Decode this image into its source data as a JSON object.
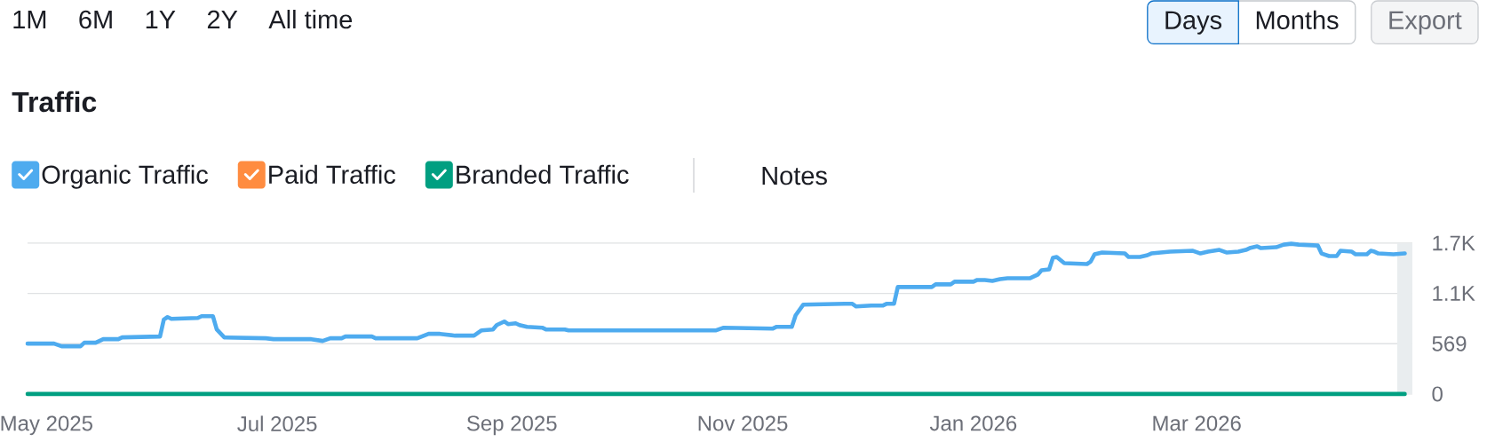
{
  "chart_data": {
    "type": "line",
    "title": "Traffic",
    "annotations": [
      "1M",
      "6M",
      "1Y",
      "2Y",
      "All time",
      "Days",
      "Months",
      "Export",
      "Notes"
    ],
    "x": [
      "2025-04-26",
      "2025-05-03",
      "2025-05-05",
      "2025-05-10",
      "2025-05-11",
      "2025-05-14",
      "2025-05-16",
      "2025-05-20",
      "2025-05-21",
      "2025-05-31",
      "2025-06-01",
      "2025-06-02",
      "2025-06-03",
      "2025-06-10",
      "2025-06-11",
      "2025-06-14",
      "2025-06-15",
      "2025-06-17",
      "2025-06-28",
      "2025-06-30",
      "2025-07-10",
      "2025-07-13",
      "2025-07-15",
      "2025-07-18",
      "2025-07-19",
      "2025-07-26",
      "2025-07-27",
      "2025-08-07",
      "2025-08-10",
      "2025-08-13",
      "2025-08-17",
      "2025-08-22",
      "2025-08-24",
      "2025-08-27",
      "2025-08-28",
      "2025-08-30",
      "2025-08-31",
      "2025-09-02",
      "2025-09-03",
      "2025-09-05",
      "2025-09-09",
      "2025-09-10",
      "2025-09-15",
      "2025-09-16",
      "2025-10-25",
      "2025-10-27",
      "2025-11-09",
      "2025-11-10",
      "2025-11-14",
      "2025-11-15",
      "2025-11-17",
      "2025-11-28",
      "2025-11-30",
      "2025-12-01",
      "2025-12-05",
      "2025-12-08",
      "2025-12-09",
      "2025-12-11",
      "2025-12-12",
      "2025-12-21",
      "2025-12-22",
      "2025-12-26",
      "2025-12-27",
      "2026-01-01",
      "2026-01-02",
      "2026-01-04",
      "2026-01-06",
      "2026-01-08",
      "2026-01-10",
      "2026-01-16",
      "2026-01-18",
      "2026-01-19",
      "2026-01-21",
      "2026-01-22",
      "2026-01-23",
      "2026-01-25",
      "2026-01-31",
      "2026-02-01",
      "2026-02-02",
      "2026-02-04",
      "2026-02-10",
      "2026-02-11",
      "2026-02-14",
      "2026-02-16",
      "2026-02-17",
      "2026-02-22",
      "2026-02-28",
      "2026-03-02",
      "2026-03-04",
      "2026-03-07",
      "2026-03-09",
      "2026-03-12",
      "2026-03-14",
      "2026-03-15",
      "2026-03-17",
      "2026-03-18",
      "2026-03-22",
      "2026-03-24",
      "2026-03-26",
      "2026-03-28",
      "2026-04-02",
      "2026-04-03",
      "2026-04-05",
      "2026-04-07",
      "2026-04-08",
      "2026-04-11",
      "2026-04-12",
      "2026-04-15",
      "2026-04-16",
      "2026-04-17",
      "2026-04-18",
      "2026-04-22",
      "2026-04-25"
    ],
    "series": [
      {
        "name": "Organic Traffic",
        "color": "#4eabef",
        "values": [
          570,
          570,
          540,
          540,
          580,
          580,
          620,
          620,
          640,
          650,
          840,
          870,
          850,
          860,
          880,
          880,
          730,
          640,
          630,
          620,
          620,
          600,
          630,
          630,
          650,
          650,
          630,
          630,
          680,
          680,
          660,
          660,
          720,
          730,
          780,
          820,
          790,
          800,
          780,
          760,
          750,
          730,
          730,
          720,
          720,
          750,
          740,
          760,
          760,
          890,
          1010,
          1020,
          1020,
          990,
          1000,
          1000,
          1020,
          1020,
          1210,
          1210,
          1240,
          1240,
          1270,
          1270,
          1290,
          1290,
          1280,
          1300,
          1310,
          1310,
          1350,
          1400,
          1410,
          1540,
          1550,
          1480,
          1470,
          1500,
          1580,
          1600,
          1590,
          1550,
          1550,
          1570,
          1590,
          1610,
          1620,
          1590,
          1610,
          1630,
          1600,
          1610,
          1630,
          1650,
          1670,
          1650,
          1660,
          1690,
          1700,
          1690,
          1680,
          1590,
          1560,
          1560,
          1620,
          1610,
          1580,
          1580,
          1620,
          1610,
          1590,
          1580,
          1590
        ]
      },
      {
        "name": "Paid Traffic",
        "color": "#ff8c40",
        "values": [
          null,
          null,
          null,
          null,
          null,
          null,
          null,
          null,
          null,
          null,
          null,
          null,
          null,
          null,
          null,
          null,
          null,
          null,
          null,
          null,
          null,
          null,
          null,
          null,
          null,
          null,
          null,
          null,
          null,
          null,
          null,
          null,
          null,
          null,
          null,
          null,
          null,
          null,
          null,
          null,
          null,
          null,
          null,
          null,
          null,
          null,
          null,
          null,
          null,
          null,
          null,
          null,
          null,
          null,
          null,
          null,
          null,
          null,
          null,
          null,
          null,
          null,
          null,
          null,
          null,
          null,
          null,
          null,
          null,
          null,
          null,
          null,
          null,
          null,
          null,
          null,
          null,
          null,
          null,
          null,
          null,
          null,
          null,
          null,
          null,
          null,
          null,
          null,
          null,
          null,
          null,
          null,
          null,
          null,
          null,
          null,
          null,
          null,
          null,
          null,
          null,
          null,
          null,
          null,
          null,
          null,
          null,
          null,
          null,
          null,
          null,
          null,
          null
        ]
      },
      {
        "name": "Branded Traffic",
        "color": "#009f81",
        "x": [
          "2025-04-26",
          "2026-04-25"
        ],
        "values": [
          0,
          0
        ]
      }
    ],
    "xlim": [
      "2025-04-26",
      "2026-04-27"
    ],
    "xticks": [
      {
        "value": "2025-05-01",
        "label": "May 2025"
      },
      {
        "value": "2025-07-01",
        "label": "Jul 2025"
      },
      {
        "value": "2025-09-01",
        "label": "Sep 2025"
      },
      {
        "value": "2025-11-01",
        "label": "Nov 2025"
      },
      {
        "value": "2026-01-01",
        "label": "Jan 2026"
      },
      {
        "value": "2026-03-01",
        "label": "Mar 2026"
      }
    ],
    "ylim": [
      0,
      1707
    ],
    "yticks": [
      0,
      569,
      {
        "value": 1138,
        "label": "1.1K"
      },
      {
        "value": 1707,
        "label": "1.7K"
      }
    ],
    "grid": "y",
    "legend": "top left",
    "bands": [
      {
        "axis": "x",
        "from": "2026-04-23",
        "to": "2026-04-27",
        "color": "#e9edef"
      }
    ]
  }
}
